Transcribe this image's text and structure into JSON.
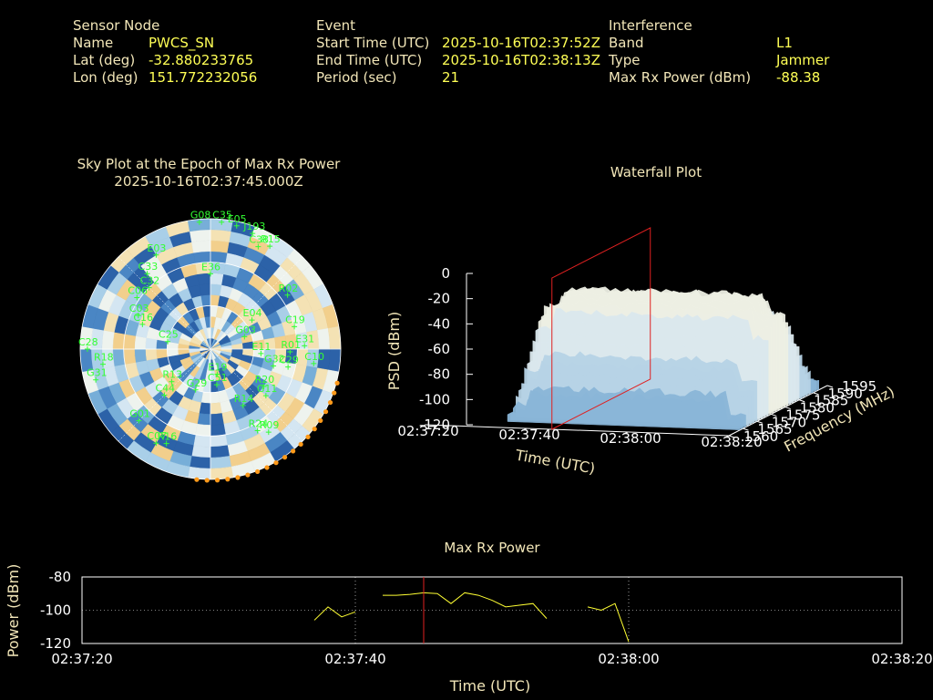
{
  "info": {
    "sensor": {
      "heading": "Sensor Node",
      "rows": [
        {
          "label": "Name",
          "value": "PWCS_SN"
        },
        {
          "label": "Lat (deg)",
          "value": "-32.880233765"
        },
        {
          "label": "Lon (deg)",
          "value": "151.772232056"
        }
      ]
    },
    "event": {
      "heading": "Event",
      "rows": [
        {
          "label": "Start Time (UTC)",
          "value": "2025-10-16T02:37:52Z"
        },
        {
          "label": "End Time (UTC)",
          "value": "2025-10-16T02:38:13Z"
        },
        {
          "label": "Period (sec)",
          "value": "21"
        }
      ]
    },
    "interference": {
      "heading": "Interference",
      "rows": [
        {
          "label": "Band",
          "value": "L1"
        },
        {
          "label": "Type",
          "value": "Jammer"
        },
        {
          "label": "Max Rx Power (dBm)",
          "value": "-88.38"
        }
      ]
    }
  },
  "chart_data": [
    {
      "type": "scatter",
      "title": "Sky Plot at the Epoch of Max Rx Power",
      "subtitle": "2025-10-16T02:37:45.000Z",
      "satellites": [
        {
          "id": "G08",
          "az": 355,
          "el": 2
        },
        {
          "id": "C35",
          "az": 5,
          "el": 2
        },
        {
          "id": "E05",
          "az": 12,
          "el": 3
        },
        {
          "id": "J193",
          "az": 20,
          "el": 5
        },
        {
          "id": "R15",
          "az": 30,
          "el": 8
        },
        {
          "id": "C38",
          "az": 25,
          "el": 12
        },
        {
          "id": "E03",
          "az": 330,
          "el": 15
        },
        {
          "id": "E36",
          "az": 0,
          "el": 38
        },
        {
          "id": "C33",
          "az": 320,
          "el": 22
        },
        {
          "id": "C32",
          "az": 315,
          "el": 30
        },
        {
          "id": "C06",
          "az": 305,
          "el": 28
        },
        {
          "id": "R02",
          "az": 55,
          "el": 25
        },
        {
          "id": "C19",
          "az": 75,
          "el": 30
        },
        {
          "id": "C03",
          "az": 295,
          "el": 35
        },
        {
          "id": "C16",
          "az": 290,
          "el": 40
        },
        {
          "id": "E04",
          "az": 55,
          "el": 55
        },
        {
          "id": "C25",
          "az": 280,
          "el": 60
        },
        {
          "id": "C28",
          "az": 270,
          "el": 5
        },
        {
          "id": "R18",
          "az": 262,
          "el": 15
        },
        {
          "id": "G31",
          "az": 255,
          "el": 8
        },
        {
          "id": "G03",
          "az": 70,
          "el": 65
        },
        {
          "id": "E11",
          "az": 95,
          "el": 55
        },
        {
          "id": "R01",
          "az": 92,
          "el": 35
        },
        {
          "id": "E31",
          "az": 88,
          "el": 25
        },
        {
          "id": "G32",
          "az": 105,
          "el": 45
        },
        {
          "id": "C29",
          "az": 103,
          "el": 35
        },
        {
          "id": "C10",
          "az": 98,
          "el": 18
        },
        {
          "id": "R13",
          "az": 230,
          "el": 55
        },
        {
          "id": "C44",
          "az": 225,
          "el": 45
        },
        {
          "id": "G29",
          "az": 200,
          "el": 60
        },
        {
          "id": "C51",
          "az": 170,
          "el": 65
        },
        {
          "id": "E19",
          "az": 165,
          "el": 72
        },
        {
          "id": "R14",
          "az": 150,
          "el": 45
        },
        {
          "id": "G11",
          "az": 130,
          "el": 40
        },
        {
          "id": "R20",
          "az": 125,
          "el": 45
        },
        {
          "id": "R09",
          "az": 145,
          "el": 20
        },
        {
          "id": "R24",
          "az": 150,
          "el": 25
        },
        {
          "id": "G01",
          "az": 225,
          "el": 20
        },
        {
          "id": "C07",
          "az": 210,
          "el": 15
        },
        {
          "id": "R16",
          "az": 205,
          "el": 18
        }
      ]
    },
    {
      "type": "area",
      "title": "Waterfall Plot",
      "xlabel": "Time (UTC)",
      "ylabel": "Frequency (MHz)",
      "zlabel": "PSD (dBm)",
      "x_ticks": [
        "02:37:20",
        "02:37:40",
        "02:38:00",
        "02:38:20"
      ],
      "y_ticks": [
        "1560",
        "1565",
        "1570",
        "1575",
        "1580",
        "1585",
        "1590",
        "1595"
      ],
      "z_ticks": [
        "0",
        "-20",
        "-40",
        "-60",
        "-80",
        "-100",
        "-120"
      ],
      "zlim": [
        -120,
        0
      ],
      "ylim": [
        1560,
        1595
      ],
      "marker_time": "02:37:45"
    },
    {
      "type": "line",
      "title": "Max Rx Power",
      "xlabel": "Time (UTC)",
      "ylabel": "Power (dBm)",
      "ylim": [
        -120,
        -80
      ],
      "x_ticks": [
        "02:37:20",
        "02:37:40",
        "02:38:00",
        "02:38:20"
      ],
      "y_ticks": [
        "-80",
        "-100",
        "-120"
      ],
      "marker_time": "02:37:45",
      "series": [
        {
          "x": [
            "02:37:37",
            "02:37:38",
            "02:37:39",
            "02:37:40"
          ],
          "y": [
            -106,
            -98,
            -104,
            -101
          ]
        },
        {
          "x": [
            "02:37:42",
            "02:37:43",
            "02:37:44",
            "02:37:45",
            "02:37:46",
            "02:37:47",
            "02:37:48",
            "02:37:49",
            "02:37:50",
            "02:37:51",
            "02:37:52",
            "02:37:53",
            "02:37:54"
          ],
          "y": [
            -91,
            -91,
            -90.5,
            -89.5,
            -90,
            -96,
            -89.5,
            -91,
            -94,
            -98,
            -97,
            -96,
            -105
          ]
        },
        {
          "x": [
            "02:37:57",
            "02:37:58",
            "02:37:59",
            "02:38:00"
          ],
          "y": [
            -98,
            -100,
            -96,
            -119
          ]
        }
      ]
    }
  ]
}
